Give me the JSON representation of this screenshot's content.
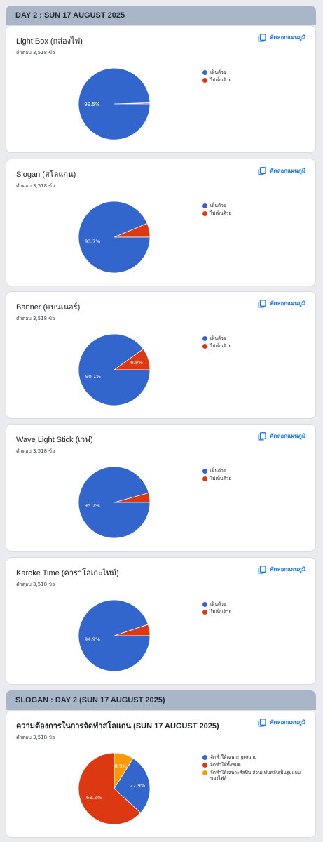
{
  "sections": [
    {
      "header": "DAY 2 : SUN 17 AUGUST 2025",
      "cards": [
        {
          "title": "Light Box (กล่องไฟ)",
          "count": "คำตอบ 3,518 ข้อ",
          "copy_label": "คัดลอกแผนภูมิ",
          "legend": [
            "เห็นด้วย",
            "ไม่เห็นด้วย"
          ],
          "chart_data": {
            "type": "pie",
            "labels": [
              "เห็นด้วย",
              "ไม่เห็นด้วย"
            ],
            "values": [
              99.5,
              0.5
            ],
            "slice_labels": [
              "99.5%",
              ""
            ],
            "colors": [
              "#3366cc",
              "#dc3912"
            ]
          }
        },
        {
          "title": "Slogan (สโลแกน)",
          "count": "คำตอบ 3,518 ข้อ",
          "copy_label": "คัดลอกแผนภูมิ",
          "legend": [
            "เห็นด้วย",
            "ไม่เห็นด้วย"
          ],
          "chart_data": {
            "type": "pie",
            "labels": [
              "เห็นด้วย",
              "ไม่เห็นด้วย"
            ],
            "values": [
              93.7,
              6.3
            ],
            "slice_labels": [
              "93.7%",
              ""
            ],
            "colors": [
              "#3366cc",
              "#dc3912"
            ]
          }
        },
        {
          "title": "Banner (แบนเนอร์)",
          "count": "คำตอบ 3,518 ข้อ",
          "copy_label": "คัดลอกแผนภูมิ",
          "legend": [
            "เห็นด้วย",
            "ไม่เห็นด้วย"
          ],
          "chart_data": {
            "type": "pie",
            "labels": [
              "เห็นด้วย",
              "ไม่เห็นด้วย"
            ],
            "values": [
              90.1,
              9.9
            ],
            "slice_labels": [
              "90.1%",
              "9.9%"
            ],
            "colors": [
              "#3366cc",
              "#dc3912"
            ]
          }
        },
        {
          "title": "Wave Light Stick (เวฟ)",
          "count": "คำตอบ 3,518 ข้อ",
          "copy_label": "คัดลอกแผนภูมิ",
          "legend": [
            "เห็นด้วย",
            "ไม่เห็นด้วย"
          ],
          "chart_data": {
            "type": "pie",
            "labels": [
              "เห็นด้วย",
              "ไม่เห็นด้วย"
            ],
            "values": [
              95.7,
              4.3
            ],
            "slice_labels": [
              "95.7%",
              ""
            ],
            "colors": [
              "#3366cc",
              "#dc3912"
            ]
          }
        },
        {
          "title": "Karoke Time (คาราโอเกะไทม์)",
          "count": "คำตอบ 3,518 ข้อ",
          "copy_label": "คัดลอกแผนภูมิ",
          "legend": [
            "เห็นด้วย",
            "ไม่เห็นด้วย"
          ],
          "chart_data": {
            "type": "pie",
            "labels": [
              "เห็นด้วย",
              "ไม่เห็นด้วย"
            ],
            "values": [
              94.9,
              5.1
            ],
            "slice_labels": [
              "94.9%",
              ""
            ],
            "colors": [
              "#3366cc",
              "#dc3912"
            ]
          }
        }
      ]
    },
    {
      "header": "SLOGAN : DAY 2 (SUN 17 AUGUST 2025)",
      "cards": [
        {
          "title": "ความต้องการในการจัดทำสโลแกน (SUN 17 AUGUST 2025)",
          "count": "คำตอบ 3,518 ข้อ",
          "copy_label": "คัดลอกแผนภูมิ",
          "legend": [
            "จัดทำให้เฉพาะ ground",
            "จัดทำให้ทั้งหมด",
            "จัดทำให้เฉพาะศิลปิน ส่วนแฟนคลับเป็นรูปแบบของไฟล์"
          ],
          "chart_data": {
            "type": "pie",
            "labels": [
              "จัดทำให้เฉพาะ ground",
              "จัดทำให้ทั้งหมด",
              "จัดทำให้เฉพาะศิลปิน ส่วนแฟนคลับเป็นรูปแบบของไฟล์"
            ],
            "values": [
              27.9,
              63.2,
              8.9
            ],
            "slice_labels": [
              "27.9%",
              "63.2%",
              "8.9%"
            ],
            "colors": [
              "#3366cc",
              "#dc3912",
              "#ff9900"
            ]
          }
        }
      ]
    }
  ]
}
